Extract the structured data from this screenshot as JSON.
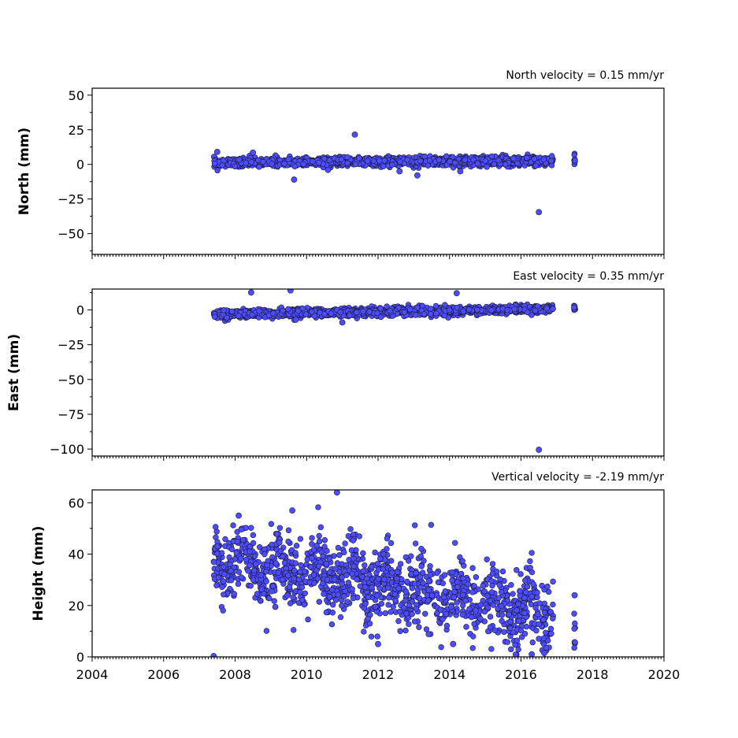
{
  "colors": {
    "marker_fill": "#4d4dff",
    "marker_edge": "#1a1a3a",
    "axis": "#000000"
  },
  "chart_data": [
    {
      "type": "scatter",
      "id": "north",
      "title": "North velocity = 0.15 mm/yr",
      "xlabel": "",
      "ylabel": "North (mm)",
      "xlim": [
        2004,
        2020
      ],
      "ylim": [
        -65,
        55
      ],
      "yticks": [
        -50,
        -25,
        0,
        25,
        50
      ],
      "yticklabels": [
        "−50",
        "−25",
        "0",
        "25",
        "50"
      ],
      "xticks": [
        2004,
        2006,
        2008,
        2010,
        2012,
        2014,
        2016,
        2018,
        2020
      ],
      "xticklabels": [],
      "grid": false,
      "trend": {
        "start_year": 2007.4,
        "end_year": 2016.9,
        "start_value": 1.2,
        "end_value": 2.7,
        "spread": 1.6
      },
      "gap_years": [
        [
          2016.9,
          2017.45
        ]
      ],
      "late_cluster": {
        "year": 2017.5,
        "center": 2.5,
        "spread": 2.0
      },
      "outliers": [
        {
          "x": 2011.35,
          "y": 21.5
        },
        {
          "x": 2009.65,
          "y": -11
        },
        {
          "x": 2016.5,
          "y": -34.5
        },
        {
          "x": 2013.1,
          "y": -8
        },
        {
          "x": 2012.6,
          "y": -5
        },
        {
          "x": 2014.3,
          "y": -5
        },
        {
          "x": 2010.6,
          "y": -4
        },
        {
          "x": 2007.5,
          "y": 9
        },
        {
          "x": 2008.5,
          "y": 8.5
        }
      ]
    },
    {
      "type": "scatter",
      "id": "east",
      "title": "East velocity = 0.35 mm/yr",
      "xlabel": "",
      "ylabel": "East (mm)",
      "xlim": [
        2004,
        2020
      ],
      "ylim": [
        -105,
        15
      ],
      "yticks": [
        -100,
        -75,
        -50,
        -25,
        0
      ],
      "yticklabels": [
        "−100",
        "−75",
        "−50",
        "−25",
        "0"
      ],
      "xticks": [
        2004,
        2006,
        2008,
        2010,
        2012,
        2014,
        2016,
        2018,
        2020
      ],
      "xticklabels": [],
      "grid": false,
      "trend": {
        "start_year": 2007.4,
        "end_year": 2016.9,
        "start_value": -3.0,
        "end_value": 0.5,
        "spread": 1.5
      },
      "gap_years": [
        [
          2016.9,
          2017.45
        ]
      ],
      "late_cluster": {
        "year": 2017.5,
        "center": 1.5,
        "spread": 1.5
      },
      "outliers": [
        {
          "x": 2008.45,
          "y": 12.5
        },
        {
          "x": 2009.55,
          "y": 14
        },
        {
          "x": 2014.2,
          "y": 12
        },
        {
          "x": 2016.5,
          "y": -100.5
        },
        {
          "x": 2011.0,
          "y": -9
        },
        {
          "x": 2009.7,
          "y": -7
        }
      ]
    },
    {
      "type": "scatter",
      "id": "height",
      "title": "Vertical velocity = -2.19 mm/yr",
      "xlabel": "",
      "ylabel": "Height (mm)",
      "xlim": [
        2004,
        2020
      ],
      "ylim": [
        0,
        65
      ],
      "yticks": [
        0,
        20,
        40,
        60
      ],
      "yticklabels": [
        "0",
        "20",
        "40",
        "60"
      ],
      "xticks": [
        2004,
        2006,
        2008,
        2010,
        2012,
        2014,
        2016,
        2018,
        2020
      ],
      "xticklabels": [
        "2004",
        "2006",
        "2008",
        "2010",
        "2012",
        "2014",
        "2016",
        "2018",
        "2020"
      ],
      "grid": false,
      "trend": {
        "start_year": 2007.4,
        "end_year": 2016.9,
        "start_value": 38,
        "end_value": 17,
        "spread": 7
      },
      "gap_years": [
        [
          2016.9,
          2017.45
        ]
      ],
      "late_cluster": {
        "year": 2017.5,
        "center": 12,
        "spread": 6
      },
      "outliers": [
        {
          "x": 2010.85,
          "y": 64
        },
        {
          "x": 2007.4,
          "y": 0.3
        },
        {
          "x": 2008.1,
          "y": 55
        },
        {
          "x": 2009.6,
          "y": 57
        },
        {
          "x": 2016.3,
          "y": 1
        },
        {
          "x": 2016.65,
          "y": 1.5
        },
        {
          "x": 2012.0,
          "y": 5
        },
        {
          "x": 2014.1,
          "y": 5
        },
        {
          "x": 2017.5,
          "y": 24
        }
      ]
    }
  ]
}
